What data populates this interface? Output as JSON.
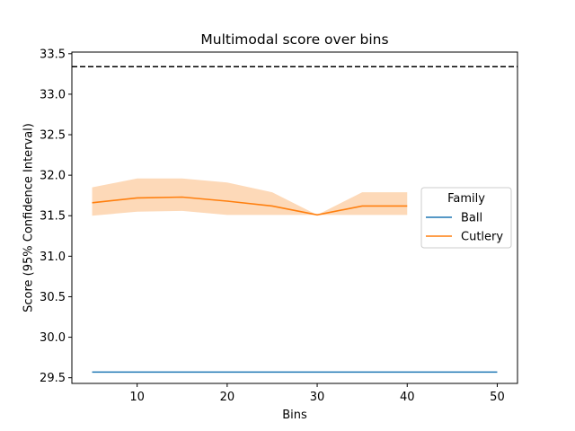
{
  "chart_data": {
    "type": "line",
    "title": "Multimodal score over bins",
    "xlabel": "Bins",
    "ylabel": "Score (95% Confidence Interval)",
    "xlim": [
      2.75,
      52.25
    ],
    "ylim": [
      29.43,
      33.52
    ],
    "x_ticks": [
      10,
      20,
      30,
      40,
      50
    ],
    "y_ticks": [
      29.5,
      30.0,
      30.5,
      31.0,
      31.5,
      32.0,
      32.5,
      33.0,
      33.5
    ],
    "y_tick_labels": [
      "29.5",
      "30.0",
      "30.5",
      "31.0",
      "31.5",
      "32.0",
      "32.5",
      "33.0",
      "33.5"
    ],
    "grid": false,
    "legend": {
      "title": "Family",
      "placement": "center-right"
    },
    "reference_line": {
      "y": 33.34,
      "style": "dashed",
      "color": "#000000"
    },
    "series": [
      {
        "name": "Ball",
        "color": "#1f77b4",
        "x": [
          5,
          10,
          15,
          20,
          25,
          30,
          35,
          40,
          45,
          50
        ],
        "values": [
          29.57,
          29.57,
          29.57,
          29.57,
          29.57,
          29.57,
          29.57,
          29.57,
          29.57,
          29.57
        ]
      },
      {
        "name": "Cutlery",
        "color": "#ff7f0e",
        "x": [
          5,
          10,
          15,
          20,
          25,
          30,
          35,
          40
        ],
        "values": [
          31.66,
          31.72,
          31.73,
          31.68,
          31.62,
          31.51,
          31.62,
          31.62
        ],
        "ci_lower": [
          31.5,
          31.55,
          31.56,
          31.51,
          31.51,
          31.51,
          31.51,
          31.51
        ],
        "ci_upper": [
          31.85,
          31.96,
          31.96,
          31.91,
          31.79,
          31.51,
          31.79,
          31.79
        ],
        "ci_color": "#fdd9b8"
      }
    ]
  }
}
